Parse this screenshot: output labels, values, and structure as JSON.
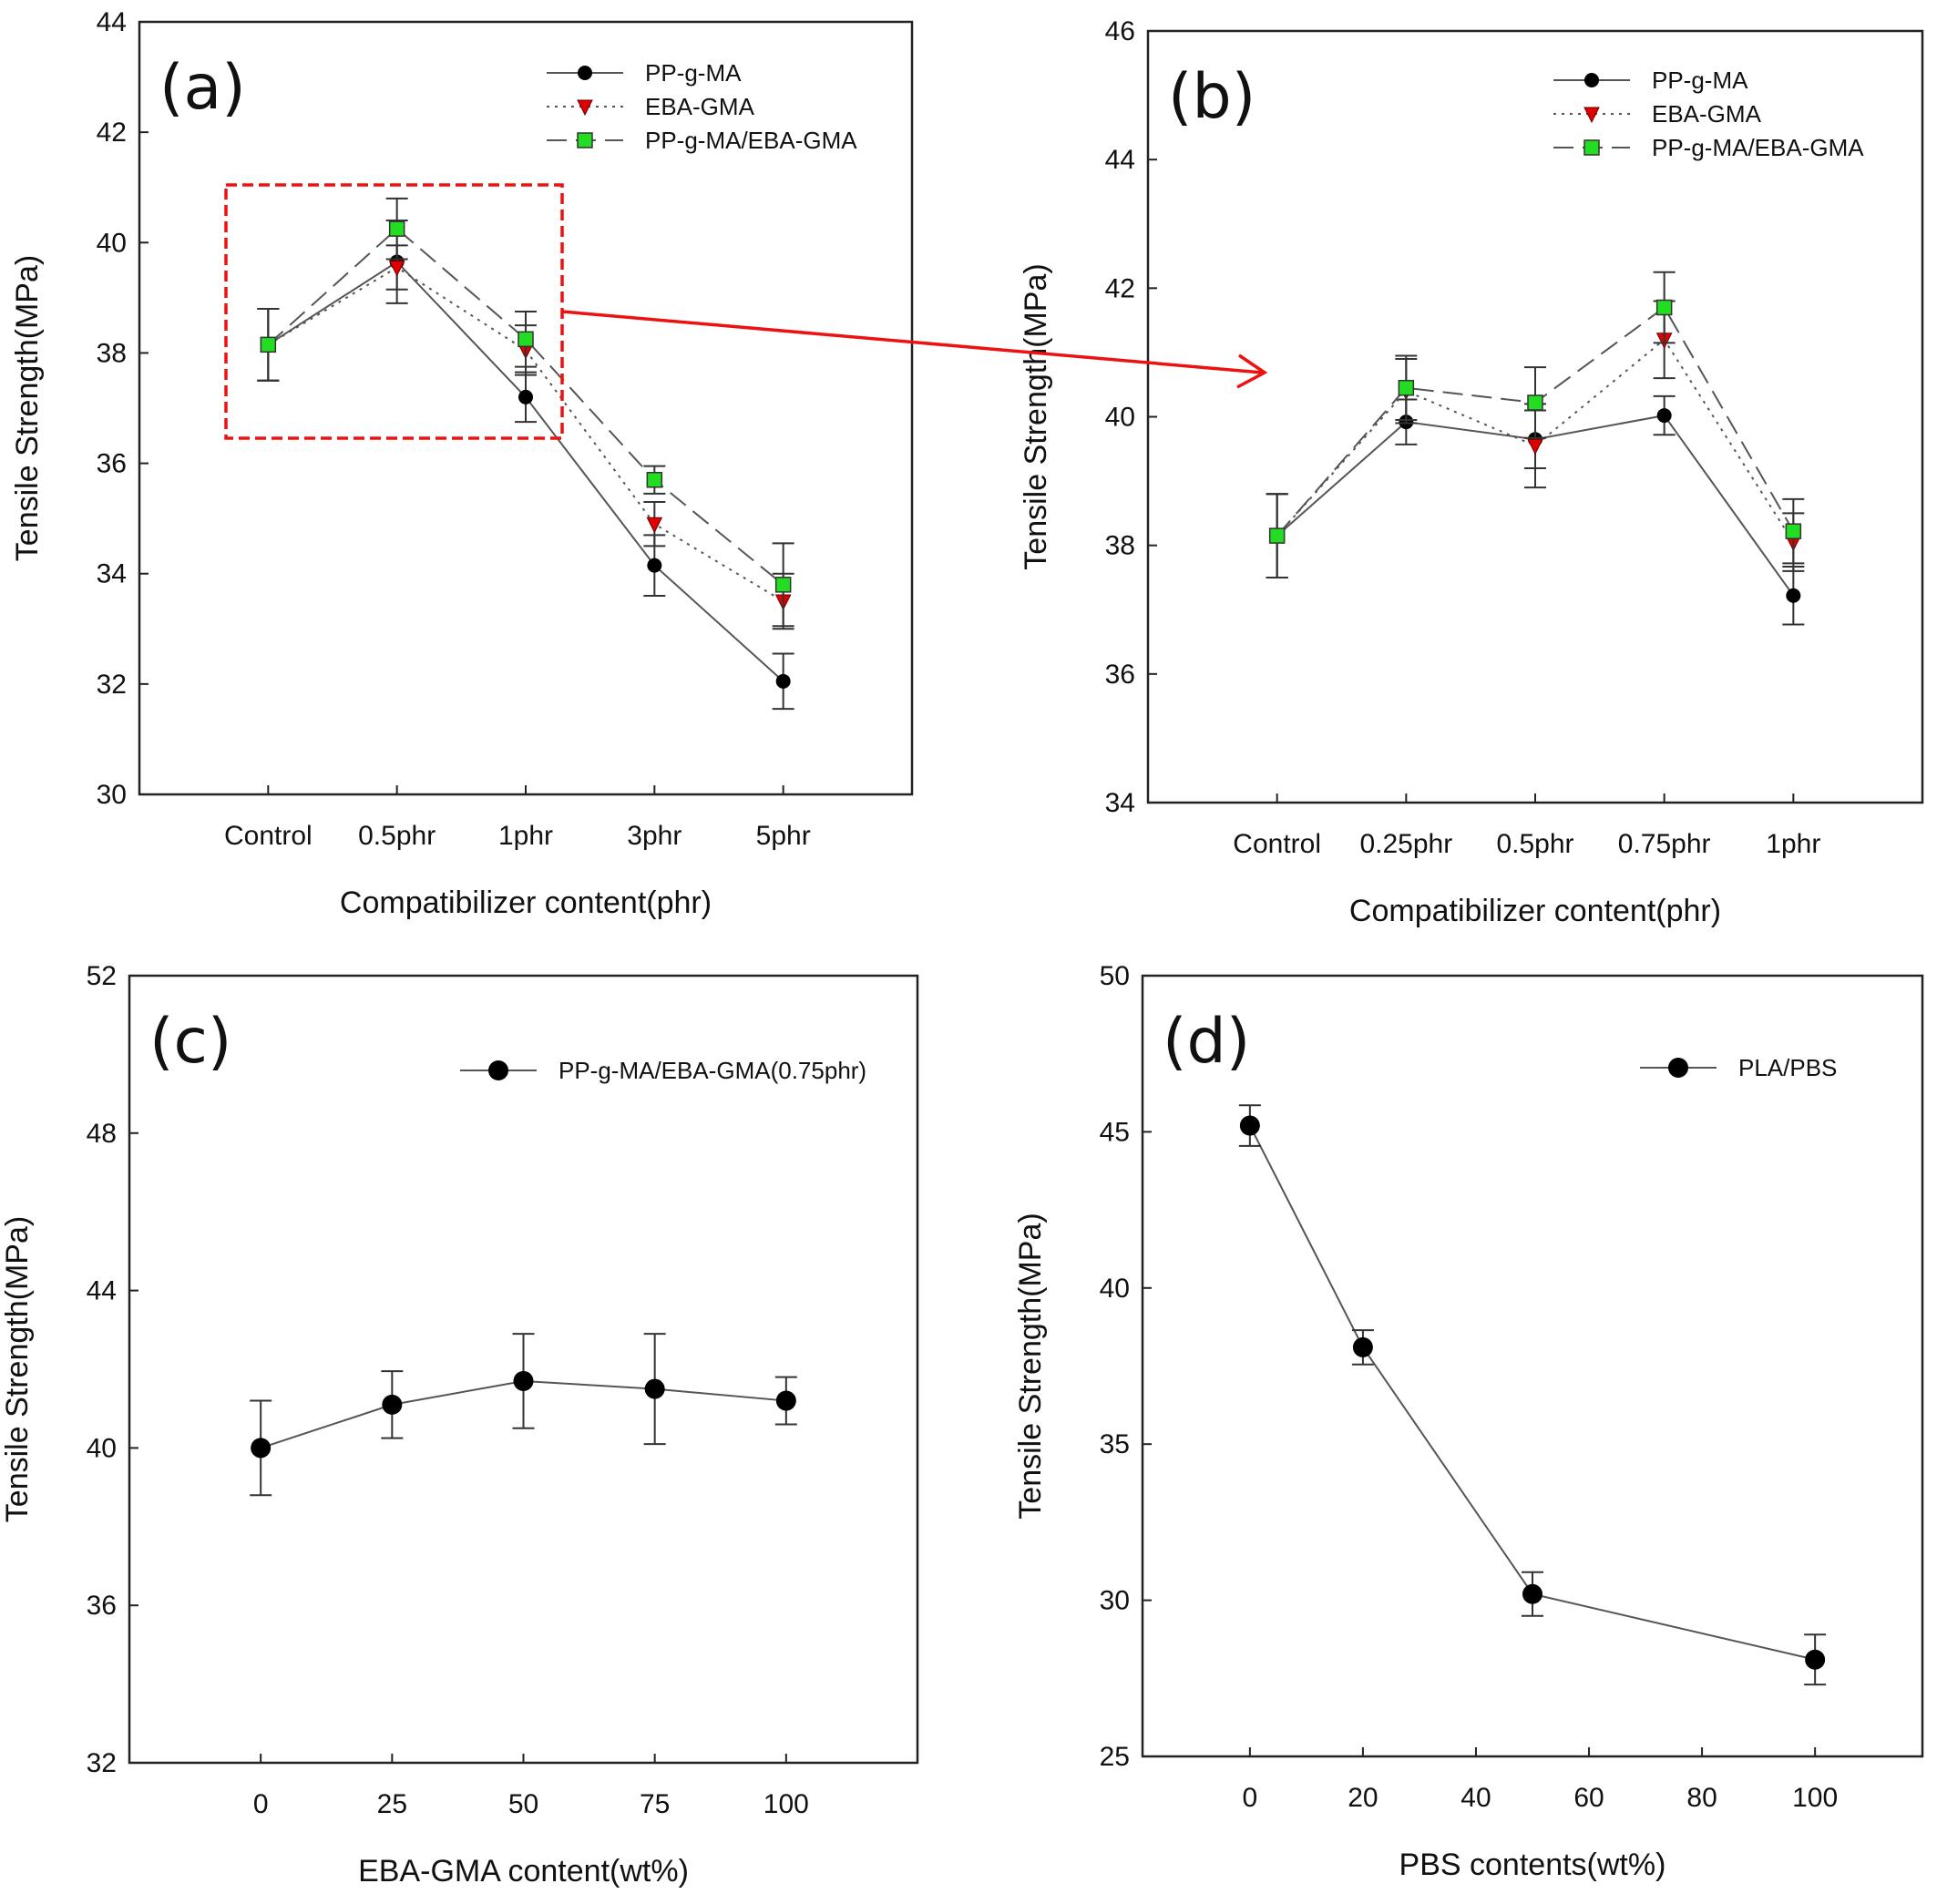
{
  "colors": {
    "circle": "#000000",
    "triangle": "#e00000",
    "square": "#22dd22",
    "annotation": "#ee1111",
    "line": "#555555"
  },
  "chart_data": [
    {
      "panel": "(a)",
      "type": "line",
      "xlabel": "Compatibilizer content(phr)",
      "ylabel": "Tensile Strength(MPa)",
      "ylim": [
        30,
        44
      ],
      "yticks": [
        30,
        32,
        34,
        36,
        38,
        40,
        42,
        44
      ],
      "categories": [
        "Control",
        "0.5phr",
        "1phr",
        "3phr",
        "5phr"
      ],
      "legend": "top-right",
      "grid": false,
      "series": [
        {
          "name": "PP-g-MA",
          "marker": "circle",
          "dash": "solid",
          "values": [
            38.15,
            39.65,
            37.2,
            34.15,
            32.05
          ],
          "errors": [
            0.65,
            0.75,
            0.45,
            0.55,
            0.5
          ]
        },
        {
          "name": "EBA-GMA",
          "marker": "triangle",
          "dash": "dotted",
          "values": [
            38.15,
            39.55,
            38.05,
            34.9,
            33.5
          ],
          "errors": [
            0.65,
            0.4,
            0.45,
            0.4,
            0.5
          ]
        },
        {
          "name": "PP-g-MA/EBA-GMA",
          "marker": "square",
          "dash": "dashed",
          "values": [
            38.15,
            40.25,
            38.25,
            35.7,
            33.8
          ],
          "errors": [
            0.65,
            0.55,
            0.5,
            0.25,
            0.75
          ]
        }
      ]
    },
    {
      "panel": "(b)",
      "type": "line",
      "xlabel": "Compatibilizer content(phr)",
      "ylabel": "Tensile Strength(MPa)",
      "ylim": [
        34,
        46
      ],
      "yticks": [
        34,
        36,
        38,
        40,
        42,
        44,
        46
      ],
      "categories": [
        "Control",
        "0.25phr",
        "0.5phr",
        "0.75phr",
        "1phr"
      ],
      "legend": "top-right",
      "grid": false,
      "series": [
        {
          "name": "PP-g-MA",
          "marker": "circle",
          "dash": "solid",
          "values": [
            38.15,
            39.92,
            39.65,
            40.02,
            37.22
          ],
          "errors": [
            0.65,
            0.35,
            0.45,
            0.3,
            0.45
          ]
        },
        {
          "name": "EBA-GMA",
          "marker": "triangle",
          "dash": "dotted",
          "values": [
            38.15,
            40.4,
            39.55,
            41.2,
            38.05
          ],
          "errors": [
            0.65,
            0.5,
            0.65,
            0.6,
            0.45
          ]
        },
        {
          "name": "PP-g-MA/EBA-GMA",
          "marker": "square",
          "dash": "dashed",
          "values": [
            38.15,
            40.45,
            40.22,
            41.7,
            38.22
          ],
          "errors": [
            0.65,
            0.5,
            0.55,
            0.55,
            0.5
          ]
        }
      ]
    },
    {
      "panel": "(c)",
      "type": "line",
      "xlabel": "EBA-GMA content(wt%)",
      "ylabel": "Tensile Strength(MPa)",
      "ylim": [
        32,
        52
      ],
      "xlim": [
        -25,
        125
      ],
      "yticks": [
        32,
        36,
        40,
        44,
        48,
        52
      ],
      "xticks": [
        0,
        25,
        50,
        75,
        100
      ],
      "legend": "top-right",
      "grid": false,
      "series": [
        {
          "name": "PP-g-MA/EBA-GMA(0.75phr)",
          "marker": "circle",
          "dash": "solid",
          "x": [
            0,
            25,
            50,
            75,
            100
          ],
          "values": [
            40.0,
            41.1,
            41.7,
            41.5,
            41.2
          ],
          "errors": [
            1.2,
            0.85,
            1.2,
            1.4,
            0.6
          ]
        }
      ]
    },
    {
      "panel": "(d)",
      "type": "line",
      "xlabel": "PBS contents(wt%)",
      "ylabel": "Tensile Strength(MPa)",
      "ylim": [
        25,
        50
      ],
      "xlim": [
        -19,
        119
      ],
      "yticks": [
        25,
        30,
        35,
        40,
        45,
        50
      ],
      "xticks": [
        0,
        20,
        40,
        60,
        80,
        100
      ],
      "legend": "top-right",
      "grid": false,
      "series": [
        {
          "name": "PLA/PBS",
          "marker": "circle",
          "dash": "solid",
          "x": [
            0,
            20,
            50,
            100
          ],
          "values": [
            45.2,
            38.1,
            30.2,
            28.1
          ],
          "errors": [
            0.65,
            0.55,
            0.7,
            0.8
          ]
        }
      ]
    }
  ]
}
